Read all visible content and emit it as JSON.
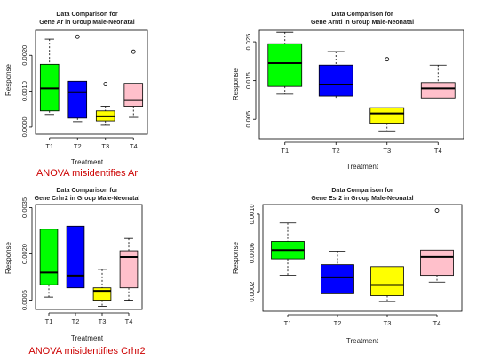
{
  "chart_data": [
    {
      "type": "box",
      "title": "Data Comparison for",
      "subtitle": "Gene Ar in Group Male-Neonatal",
      "xlabel": "Treatment",
      "ylabel": "Response",
      "categories": [
        "T1",
        "T2",
        "T3",
        "T4"
      ],
      "ylim": [
        -0.0002,
        0.0027
      ],
      "yticks": [
        0.0,
        0.001,
        0.002
      ],
      "yticklabels": [
        "0.0000",
        "0.0010",
        "0.0020"
      ],
      "series": [
        {
          "min": 0.00035,
          "q1": 0.00045,
          "median": 0.00108,
          "q3": 0.00175,
          "max": 0.00245,
          "outliers": [],
          "color": "#00ff00"
        },
        {
          "min": 0.00015,
          "q1": 0.00025,
          "median": 0.00097,
          "q3": 0.00128,
          "max": 0.00128,
          "outliers": [
            0.00252
          ],
          "color": "#0000ff"
        },
        {
          "min": 5e-05,
          "q1": 0.00017,
          "median": 0.0003,
          "q3": 0.00045,
          "max": 0.00058,
          "outliers": [
            0.0012
          ],
          "color": "#ffff00"
        },
        {
          "min": 0.00027,
          "q1": 0.00058,
          "median": 0.00075,
          "q3": 0.00122,
          "max": 0.00122,
          "outliers": [
            0.0021
          ],
          "color": "#ffc0cb"
        }
      ],
      "annotation": "ANOVA misidentifies Ar"
    },
    {
      "type": "box",
      "title": "Data Comparison for",
      "subtitle": "Gene Arntl in Group Male-Neonatal",
      "xlabel": "Treatment",
      "ylabel": "Response",
      "categories": [
        "T1",
        "T2",
        "T3",
        "T4"
      ],
      "ylim": [
        0.0,
        0.028
      ],
      "yticks": [
        0.005,
        0.015,
        0.025
      ],
      "yticklabels": [
        "0.005",
        "0.015",
        "0.025"
      ],
      "series": [
        {
          "min": 0.0115,
          "q1": 0.0135,
          "median": 0.0195,
          "q3": 0.0245,
          "max": 0.0275,
          "outliers": [],
          "color": "#00ff00"
        },
        {
          "min": 0.01,
          "q1": 0.011,
          "median": 0.014,
          "q3": 0.019,
          "max": 0.0225,
          "outliers": [],
          "color": "#0000ff"
        },
        {
          "min": 0.002,
          "q1": 0.004,
          "median": 0.0065,
          "q3": 0.008,
          "max": 0.008,
          "outliers": [
            0.0205
          ],
          "color": "#ffff00"
        },
        {
          "min": 0.0105,
          "q1": 0.0105,
          "median": 0.013,
          "q3": 0.0145,
          "max": 0.019,
          "outliers": [],
          "color": "#ffc0cb"
        }
      ]
    },
    {
      "type": "box",
      "title": "Data Comparison for",
      "subtitle": "Gene Crhr2 in Group Male-Neonatal",
      "xlabel": "Treatment",
      "ylabel": "Response",
      "categories": [
        "T1",
        "T2",
        "T3",
        "T4"
      ],
      "ylim": [
        0.0002,
        0.0036
      ],
      "yticks": [
        0.0005,
        0.002,
        0.0035
      ],
      "yticklabels": [
        "0.0005",
        "0.0020",
        "0.0035"
      ],
      "series": [
        {
          "min": 0.0006,
          "q1": 0.001,
          "median": 0.0014,
          "q3": 0.0028,
          "max": 0.0028,
          "outliers": [],
          "color": "#00ff00"
        },
        {
          "min": 0.0009,
          "q1": 0.0009,
          "median": 0.0013,
          "q3": 0.0029,
          "max": 0.0029,
          "outliers": [],
          "color": "#0000ff"
        },
        {
          "min": 0.0003,
          "q1": 0.0005,
          "median": 0.0008,
          "q3": 0.0009,
          "max": 0.0015,
          "outliers": [],
          "color": "#ffff00"
        },
        {
          "min": 0.0005,
          "q1": 0.0009,
          "median": 0.0019,
          "q3": 0.0021,
          "max": 0.0025,
          "outliers": [],
          "color": "#ffc0cb"
        }
      ],
      "annotation": "ANOVA misidentifies Crhr2"
    },
    {
      "type": "box",
      "title": "Data Comparison for",
      "subtitle": "Gene Esr2 in Group Male-Neonatal",
      "xlabel": "Treatment",
      "ylabel": "Response",
      "categories": [
        "T1",
        "T2",
        "T3",
        "T4"
      ],
      "ylim": [
        0.0,
        0.0011
      ],
      "yticks": [
        0.0002,
        0.0006,
        0.001
      ],
      "yticklabels": [
        "0.0002",
        "0.0006",
        "0.0010"
      ],
      "series": [
        {
          "min": 0.00037,
          "q1": 0.00054,
          "median": 0.00063,
          "q3": 0.00072,
          "max": 0.00091,
          "outliers": [],
          "color": "#00ff00"
        },
        {
          "min": 0.00018,
          "q1": 0.00018,
          "median": 0.00035,
          "q3": 0.00048,
          "max": 0.00062,
          "outliers": [],
          "color": "#0000ff"
        },
        {
          "min": 0.0001,
          "q1": 0.00016,
          "median": 0.00027,
          "q3": 0.00046,
          "max": 0.00046,
          "outliers": [],
          "color": "#ffff00"
        },
        {
          "min": 0.0003,
          "q1": 0.00037,
          "median": 0.00056,
          "q3": 0.00063,
          "max": 0.00063,
          "outliers": [
            0.00104
          ],
          "color": "#ffc0cb"
        }
      ]
    }
  ]
}
